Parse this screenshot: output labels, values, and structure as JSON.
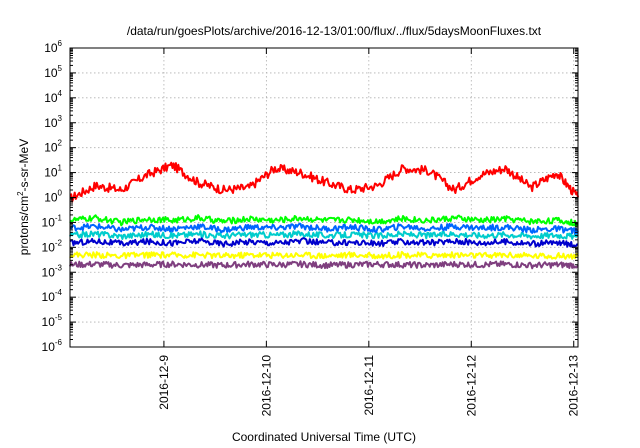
{
  "chart_data": {
    "type": "line",
    "title": "/data/run/goesPlots/archive/2016-12-13/01:00/flux/../flux/5daysMoonFluxes.txt",
    "xlabel": "Coordinated Universal Time (UTC)",
    "ylabel": "protons/cm²-s-sr-MeV",
    "ylabel_parts": {
      "before": "protons/cm",
      "sup": "2",
      "after": "-s-sr-MeV"
    },
    "y_scale": "log",
    "ylim": [
      1e-06,
      1000000.0
    ],
    "y_ticks": [
      {
        "exp": "-6"
      },
      {
        "exp": "-5"
      },
      {
        "exp": "-4"
      },
      {
        "exp": "-3"
      },
      {
        "exp": "-2"
      },
      {
        "exp": "-1"
      },
      {
        "exp": "0"
      },
      {
        "exp": "1"
      },
      {
        "exp": "2"
      },
      {
        "exp": "3"
      },
      {
        "exp": "4"
      },
      {
        "exp": "5"
      },
      {
        "exp": "6"
      }
    ],
    "y_tick_base": "10",
    "x_range": [
      "2016-12-08T02:00",
      "2016-12-13T01:00"
    ],
    "x_ticks": [
      "2016-12-9",
      "2016-12-10",
      "2016-12-11",
      "2016-12-12",
      "2016-12-13"
    ],
    "x_tick_dates": [
      "2016-12-09T00:00",
      "2016-12-10T00:00",
      "2016-12-11T00:00",
      "2016-12-12T00:00",
      "2016-12-13T00:00"
    ],
    "grid": true,
    "legend": "none",
    "x": [
      "2016-12-08T02:00",
      "2016-12-08T08:00",
      "2016-12-08T14:00",
      "2016-12-08T20:00",
      "2016-12-09T02:00",
      "2016-12-09T08:00",
      "2016-12-09T14:00",
      "2016-12-09T20:00",
      "2016-12-10T02:00",
      "2016-12-10T08:00",
      "2016-12-10T14:00",
      "2016-12-10T20:00",
      "2016-12-11T02:00",
      "2016-12-11T08:00",
      "2016-12-11T14:00",
      "2016-12-11T20:00",
      "2016-12-12T02:00",
      "2016-12-12T08:00",
      "2016-12-12T14:00",
      "2016-12-12T20:00",
      "2016-12-13T01:00"
    ],
    "series": [
      {
        "color": "#ff0000",
        "values": [
          0.9,
          3,
          2,
          8,
          20,
          4,
          2,
          2.5,
          15,
          10,
          4,
          2,
          3,
          15,
          12,
          2,
          8,
          15,
          2.5,
          10,
          1.0
        ]
      },
      {
        "color": "#00ff00",
        "values": [
          0.12,
          0.15,
          0.1,
          0.14,
          0.12,
          0.15,
          0.11,
          0.14,
          0.12,
          0.15,
          0.12,
          0.13,
          0.11,
          0.14,
          0.12,
          0.15,
          0.12,
          0.14,
          0.11,
          0.12,
          0.09
        ]
      },
      {
        "color": "#00cccc",
        "values": [
          0.03,
          0.035,
          0.028,
          0.033,
          0.03,
          0.034,
          0.029,
          0.033,
          0.031,
          0.035,
          0.03,
          0.032,
          0.029,
          0.034,
          0.03,
          0.035,
          0.03,
          0.033,
          0.029,
          0.031,
          0.027
        ]
      },
      {
        "color": "#0066ff",
        "values": [
          0.06,
          0.07,
          0.05,
          0.065,
          0.055,
          0.07,
          0.05,
          0.065,
          0.06,
          0.07,
          0.055,
          0.065,
          0.05,
          0.07,
          0.055,
          0.07,
          0.06,
          0.065,
          0.05,
          0.055,
          0.045
        ]
      },
      {
        "color": "#0000cc",
        "values": [
          0.015,
          0.018,
          0.014,
          0.017,
          0.015,
          0.018,
          0.014,
          0.017,
          0.015,
          0.018,
          0.015,
          0.016,
          0.014,
          0.017,
          0.015,
          0.018,
          0.015,
          0.017,
          0.014,
          0.015,
          0.013
        ]
      },
      {
        "color": "#ffff00",
        "values": [
          0.005,
          0.005,
          0.0045,
          0.005,
          0.0048,
          0.005,
          0.0045,
          0.005,
          0.0048,
          0.005,
          0.0046,
          0.005,
          0.0045,
          0.005,
          0.0047,
          0.005,
          0.0046,
          0.005,
          0.0045,
          0.0046,
          0.0044
        ]
      },
      {
        "color": "#7f3f7f",
        "values": [
          0.002,
          0.0021,
          0.0019,
          0.002,
          0.0021,
          0.002,
          0.0019,
          0.0021,
          0.002,
          0.0021,
          0.0019,
          0.002,
          0.0021,
          0.002,
          0.0019,
          0.0021,
          0.002,
          0.0021,
          0.0019,
          0.002,
          0.0019
        ]
      }
    ]
  }
}
